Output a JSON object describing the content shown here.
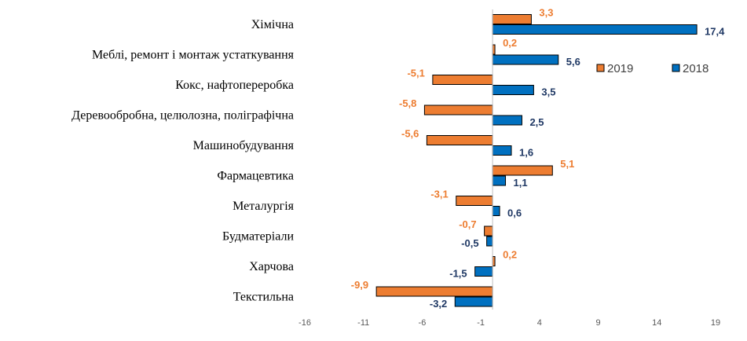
{
  "chart_data": {
    "type": "bar",
    "orientation": "horizontal",
    "title": "",
    "xlabel": "",
    "ylabel": "",
    "categories": [
      "Хімічна",
      "Меблі,  ремонт і монтаж устаткування",
      "Кокс,  нафтопереробка",
      "Деревообробна, целюлозна,  поліграфічна",
      "Машинобудування",
      "Фармацевтика",
      "Металургія",
      "Будматеріали",
      "Харчова",
      "Текстильна"
    ],
    "series": [
      {
        "name": "2019",
        "color": "#ED7D31",
        "label_color": "#ED7D31",
        "values": [
          3.3,
          0.2,
          -5.1,
          -5.8,
          -5.6,
          5.1,
          -3.1,
          -0.7,
          0.2,
          -9.9
        ],
        "labels": [
          "3,3",
          "0,2",
          "-5,1",
          "-5,8",
          "-5,6",
          "5,1",
          "-3,1",
          "-0,7",
          "0,2",
          "-9,9"
        ]
      },
      {
        "name": "2018",
        "color": "#0070C0",
        "label_color": "#1F3864",
        "values": [
          17.4,
          5.6,
          3.5,
          2.5,
          1.6,
          1.1,
          0.6,
          -0.5,
          -1.5,
          -3.2
        ],
        "labels": [
          "17,4",
          "5,6",
          "3,5",
          "2,5",
          "1,6",
          "1,1",
          "0,6",
          "-0,5",
          "-1,5",
          "-3,2"
        ]
      }
    ],
    "xlim": [
      -16,
      19
    ],
    "x_ticks": [
      -16,
      -11,
      -6,
      -1,
      4,
      9,
      14,
      19
    ],
    "x_tick_labels": [
      "-16",
      "-11",
      "-6",
      "-1",
      "4",
      "9",
      "14",
      "19"
    ],
    "grid": false,
    "legend": {
      "position": "right",
      "entries": [
        "2019",
        "2018"
      ]
    }
  }
}
